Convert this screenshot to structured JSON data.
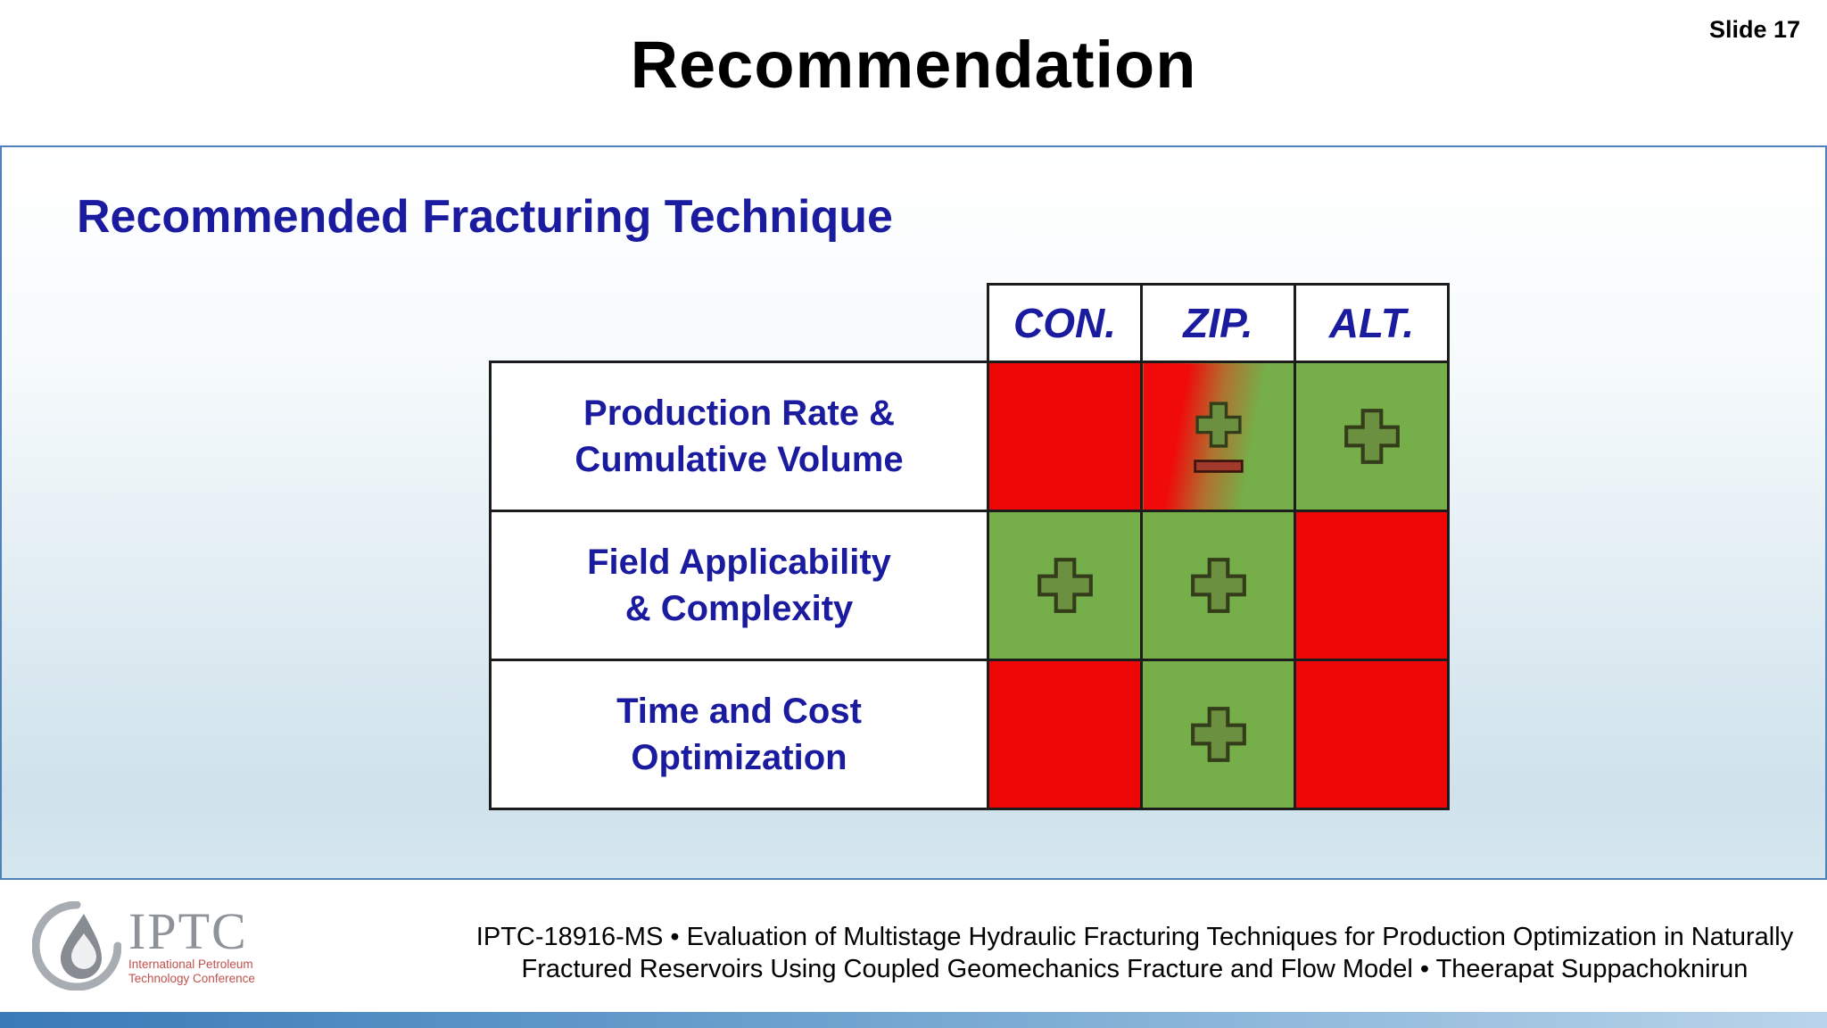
{
  "slide": {
    "number_label": "Slide 17",
    "title": "Recommendation"
  },
  "panel": {
    "heading": "Recommended Fracturing Technique"
  },
  "table": {
    "columns": [
      "CON.",
      "ZIP.",
      "ALT."
    ],
    "rows": [
      {
        "label_lines": [
          "Production Rate &",
          "Cumulative Volume"
        ],
        "cells": [
          "negative",
          "mixed",
          "positive"
        ]
      },
      {
        "label_lines": [
          "Field Applicability",
          "& Complexity"
        ],
        "cells": [
          "positive",
          "positive",
          "negative"
        ]
      },
      {
        "label_lines": [
          "Time and Cost",
          "Optimization"
        ],
        "cells": [
          "negative",
          "positive",
          "negative"
        ]
      }
    ]
  },
  "footer": {
    "logo": {
      "acronym": "IPTC",
      "name_lines": [
        "International Petroleum",
        "Technology Conference"
      ]
    },
    "citation_lines": [
      "IPTC-18916-MS • Evaluation of Multistage Hydraulic Fracturing Techniques for Production Optimization in Naturally",
      "Fractured Reservoirs Using Coupled Geomechanics Fracture and Flow Model • Theerapat Suppachoknirun"
    ]
  },
  "colors": {
    "positive_green": "#76ae49",
    "negative_red": "#ee0707",
    "heading_blue": "#1b1ba0",
    "panel_border_blue": "#4f81bd",
    "bottom_bar_blue": "#3a7ab8"
  }
}
